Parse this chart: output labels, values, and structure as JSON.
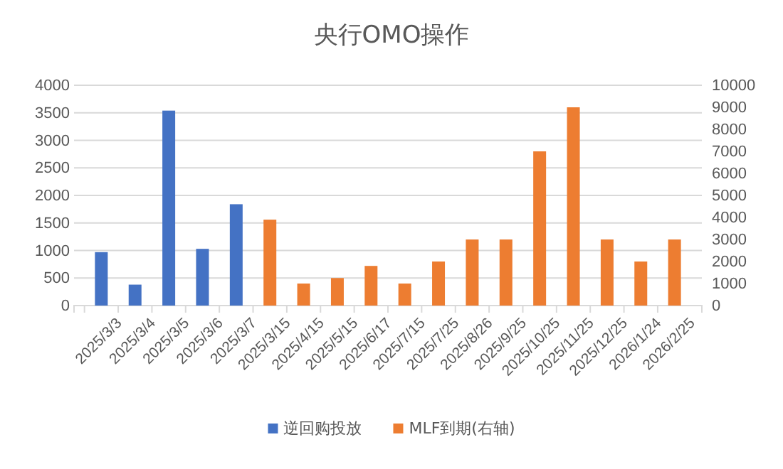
{
  "chart_data": {
    "type": "bar",
    "title": "央行OMO操作",
    "categories": [
      "2025/3/3",
      "2025/3/4",
      "2025/3/5",
      "2025/3/6",
      "2025/3/7",
      "2025/3/15",
      "2025/4/15",
      "2025/5/15",
      "2025/6/17",
      "2025/7/15",
      "2025/7/25",
      "2025/8/26",
      "2025/9/25",
      "2025/10/25",
      "2025/11/25",
      "2025/12/25",
      "2026/1/24",
      "2026/2/25"
    ],
    "series": [
      {
        "name": "逆回购投放",
        "color": "#4472c4",
        "values": [
          970,
          380,
          3540,
          1030,
          1840,
          null,
          null,
          null,
          null,
          null,
          null,
          null,
          null,
          null,
          null,
          null,
          null,
          null
        ]
      },
      {
        "name": "MLF到期(右轴)",
        "color": "#ed7d31",
        "axis": "y2",
        "values": [
          null,
          null,
          null,
          null,
          null,
          3900,
          1000,
          1250,
          1800,
          1000,
          2000,
          3000,
          3000,
          7000,
          9000,
          3000,
          2000,
          3000
        ]
      }
    ],
    "ylim": [
      0,
      4000
    ],
    "yticks": [
      0,
      500,
      1000,
      1500,
      2000,
      2500,
      3000,
      3500,
      4000
    ],
    "y2lim": [
      0,
      10000
    ],
    "y2ticks": [
      0,
      1000,
      2000,
      3000,
      4000,
      5000,
      6000,
      7000,
      8000,
      9000,
      10000
    ],
    "grid": "y",
    "legend": "bottom"
  }
}
